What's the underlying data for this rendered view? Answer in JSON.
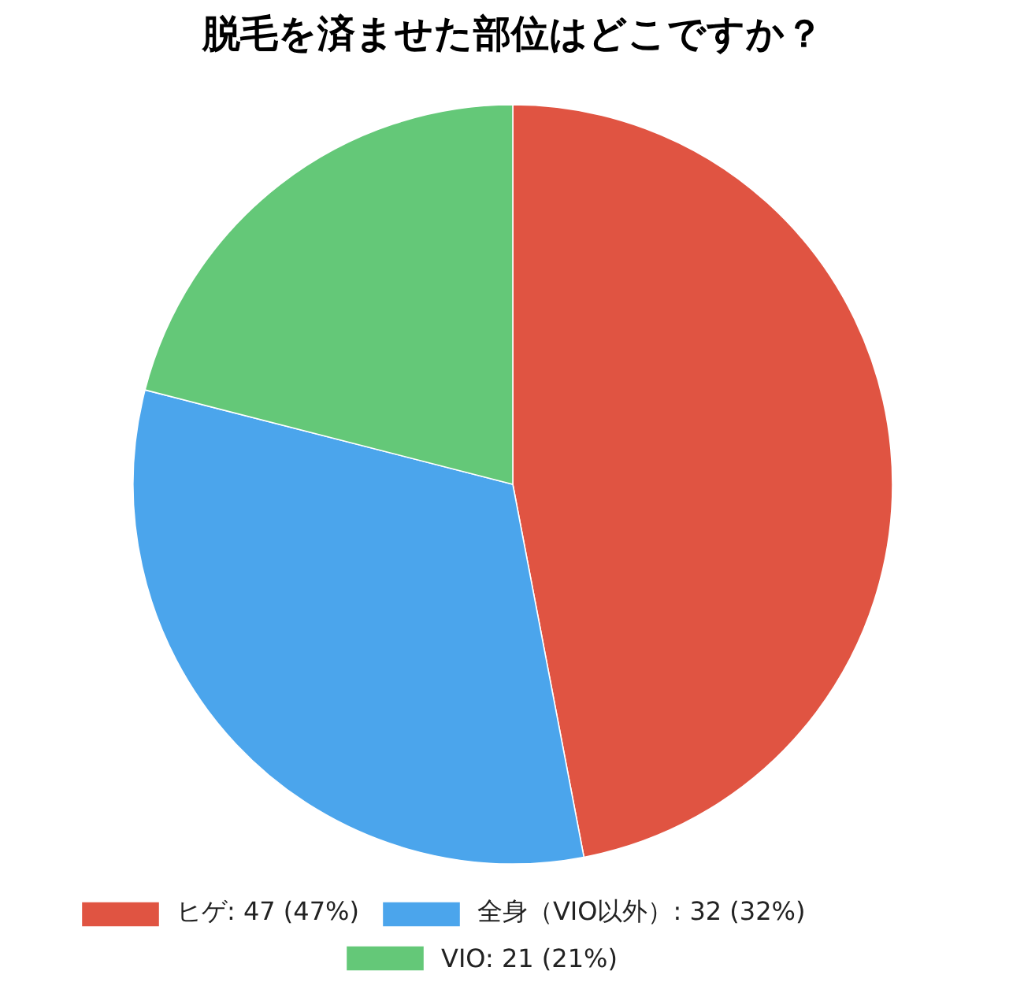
{
  "chart_data": {
    "type": "pie",
    "title": "脱毛を済ませた部位はどこですか？",
    "categories": [
      "ヒゲ",
      "全身（VIO以外）",
      "VIO"
    ],
    "values": [
      47,
      32,
      21
    ],
    "value_labels": [
      "47 (47%)",
      "32 (32%)",
      "21 (21%)"
    ],
    "colors": [
      "#e05442",
      "#4ba5ec",
      "#64c878"
    ],
    "legend": "bottom"
  }
}
